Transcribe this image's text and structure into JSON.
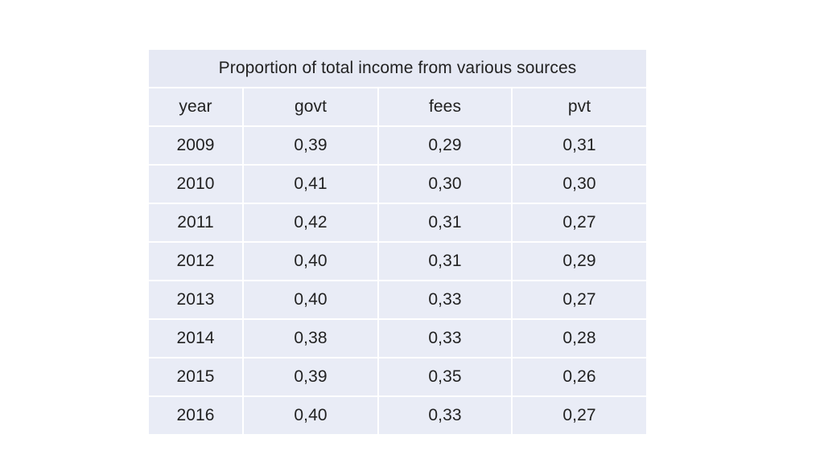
{
  "chart_data": {
    "type": "table",
    "title": "Proportion of total income from various sources",
    "columns": [
      "year",
      "govt",
      "fees",
      "pvt"
    ],
    "rows": [
      [
        "2009",
        "0,39",
        "0,29",
        "0,31"
      ],
      [
        "2010",
        "0,41",
        "0,30",
        "0,30"
      ],
      [
        "2011",
        "0,42",
        "0,31",
        "0,27"
      ],
      [
        "2012",
        "0,40",
        "0,31",
        "0,29"
      ],
      [
        "2013",
        "0,40",
        "0,33",
        "0,27"
      ],
      [
        "2014",
        "0,38",
        "0,33",
        "0,28"
      ],
      [
        "2015",
        "0,39",
        "0,35",
        "0,26"
      ],
      [
        "2016",
        "0,40",
        "0,33",
        "0,27"
      ]
    ]
  },
  "colors": {
    "cell_background": "#e9ecf6",
    "grid_lines": "#ffffff",
    "text": "#222222"
  }
}
